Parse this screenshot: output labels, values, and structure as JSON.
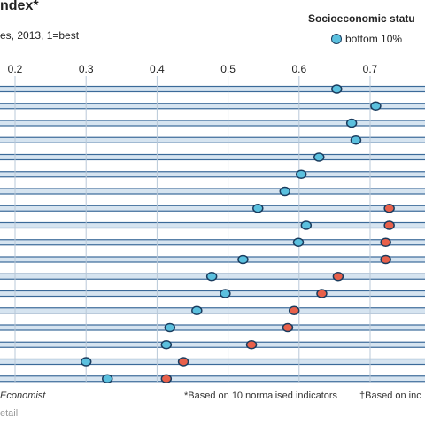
{
  "header": {
    "title": "ndex*",
    "subtitle": "es, 2013, 1=best"
  },
  "legend": {
    "title": "Socioeconomic statu",
    "item_label": "bottom 10%"
  },
  "footer": {
    "source": "Economist",
    "note": "*Based on 10 normalised indicators",
    "note2": "†Based on inc",
    "extra": "etail"
  },
  "colors": {
    "bottom": "#5bc0de",
    "top": "#e8604a",
    "outline": "#1a3c5e",
    "row": "#d6e4f0",
    "row_border": "#3b6a99"
  },
  "chart_data": {
    "type": "scatter",
    "x_ticks": [
      "0.2",
      "0.3",
      "0.4",
      "0.5",
      "0.6",
      "0.7"
    ],
    "xlim": [
      0.2,
      0.7
    ],
    "series": [
      {
        "name": "bottom 10%",
        "values": [
          0.653,
          0.708,
          0.674,
          0.68,
          0.628,
          0.603,
          0.58,
          0.542,
          0.61,
          0.599,
          0.521,
          0.477,
          0.496,
          0.456,
          0.418,
          0.413,
          0.3,
          0.33
        ]
      },
      {
        "values": [
          null,
          null,
          null,
          null,
          null,
          null,
          null,
          0.727,
          0.727,
          0.722,
          0.722,
          0.655,
          0.632,
          0.593,
          0.584,
          0.533,
          0.437,
          0.413
        ]
      }
    ],
    "rows": 18
  }
}
